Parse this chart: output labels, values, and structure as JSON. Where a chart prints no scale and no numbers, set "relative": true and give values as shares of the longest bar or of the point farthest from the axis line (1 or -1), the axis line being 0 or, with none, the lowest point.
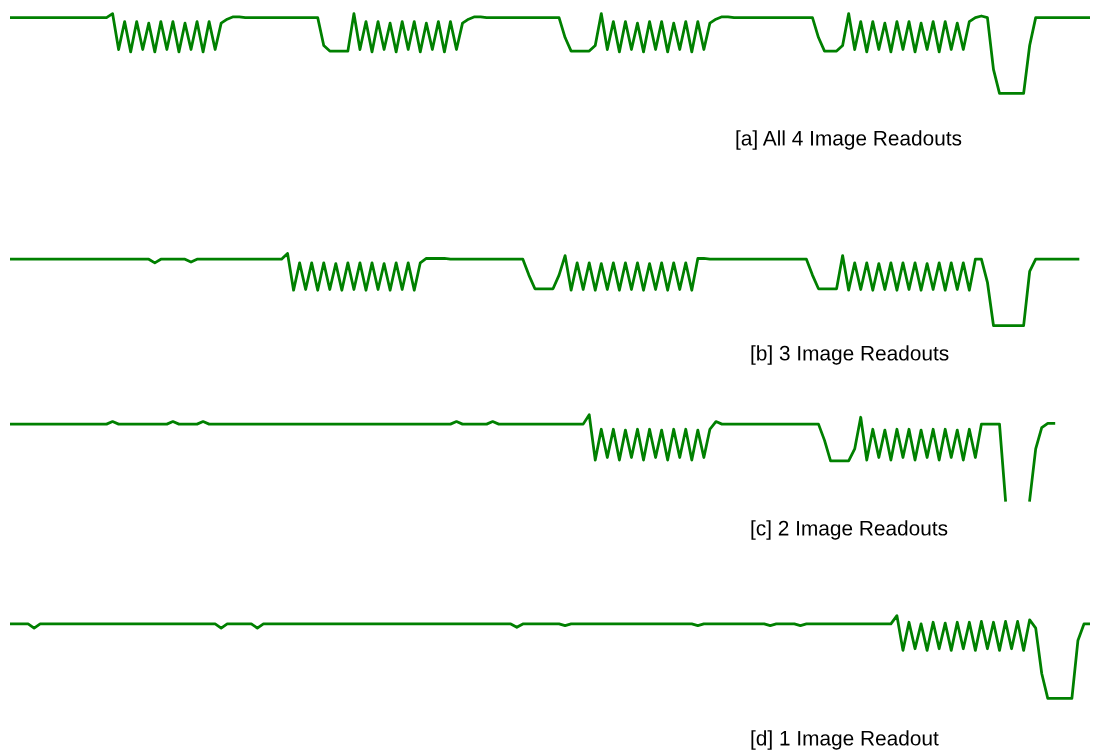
{
  "chart_data": [
    {
      "type": "line",
      "relative": true,
      "color": "#008000",
      "annotations": [
        "[a] All 4 Image Readouts"
      ],
      "categories": [
        null,
        null,
        null,
        null,
        null,
        null,
        null,
        null,
        null,
        null,
        null,
        null,
        null,
        null,
        null,
        null,
        null,
        null,
        null,
        null,
        null,
        null,
        null,
        null,
        null,
        null,
        null,
        null,
        null,
        null,
        null,
        null,
        null,
        null,
        null,
        null,
        null,
        null,
        null,
        null,
        null,
        null,
        null,
        null,
        null,
        null,
        null,
        null,
        null,
        null,
        null,
        null,
        null,
        null,
        null,
        null,
        null,
        null,
        null,
        null,
        null,
        null,
        null,
        null,
        null,
        null,
        null,
        null,
        null,
        null,
        null,
        null,
        null,
        null,
        null,
        null,
        null,
        null,
        null,
        null,
        null,
        null,
        null,
        null,
        null,
        null,
        null,
        null,
        null,
        null,
        null,
        null,
        null,
        null,
        null,
        null,
        null,
        null,
        null,
        null,
        null,
        null,
        null,
        null,
        null,
        null,
        null,
        null,
        null,
        null,
        null,
        null,
        null,
        null,
        null,
        null,
        null,
        null,
        null,
        null,
        null,
        null,
        null,
        null,
        null,
        null,
        null,
        null,
        null,
        null,
        null,
        null,
        null,
        null,
        null,
        null,
        null,
        null,
        null,
        null,
        null,
        null,
        null,
        null,
        null,
        null,
        null,
        null,
        null,
        null,
        null,
        null,
        null,
        null,
        null,
        null,
        null,
        null,
        null,
        null,
        null,
        null,
        null,
        null,
        null,
        null,
        null,
        null,
        null,
        null,
        null,
        null,
        null,
        null,
        null,
        null,
        null,
        null,
        null,
        null
      ],
      "values": [
        0.95,
        0.95,
        0.95,
        0.95,
        0.95,
        0.95,
        0.95,
        0.95,
        0.95,
        0.95,
        0.95,
        0.95,
        0.95,
        0.95,
        0.95,
        0.95,
        0.95,
        1.0,
        0.55,
        0.9,
        0.52,
        0.9,
        0.55,
        0.88,
        0.52,
        0.9,
        0.55,
        0.9,
        0.52,
        0.88,
        0.55,
        0.9,
        0.52,
        0.9,
        0.55,
        0.88,
        0.93,
        0.96,
        0.96,
        0.95,
        0.95,
        0.95,
        0.95,
        0.95,
        0.95,
        0.95,
        0.95,
        0.95,
        0.95,
        0.95,
        0.95,
        0.95,
        0.6,
        0.53,
        0.53,
        0.53,
        0.53,
        1.0,
        0.55,
        0.9,
        0.52,
        0.9,
        0.55,
        0.88,
        0.52,
        0.9,
        0.55,
        0.9,
        0.52,
        0.88,
        0.55,
        0.9,
        0.52,
        0.9,
        0.55,
        0.88,
        0.93,
        0.96,
        0.96,
        0.95,
        0.95,
        0.95,
        0.95,
        0.95,
        0.95,
        0.95,
        0.95,
        0.95,
        0.95,
        0.95,
        0.95,
        0.95,
        0.7,
        0.53,
        0.53,
        0.53,
        0.53,
        0.6,
        1.0,
        0.55,
        0.9,
        0.52,
        0.9,
        0.55,
        0.88,
        0.52,
        0.9,
        0.55,
        0.9,
        0.52,
        0.88,
        0.55,
        0.9,
        0.52,
        0.9,
        0.55,
        0.88,
        0.93,
        0.96,
        0.96,
        0.95,
        0.95,
        0.95,
        0.95,
        0.95,
        0.95,
        0.95,
        0.95,
        0.95,
        0.95,
        0.95,
        0.95,
        0.95,
        0.95,
        0.7,
        0.53,
        0.53,
        0.53,
        0.6,
        1.0,
        0.55,
        0.9,
        0.52,
        0.9,
        0.55,
        0.88,
        0.52,
        0.9,
        0.55,
        0.9,
        0.52,
        0.88,
        0.55,
        0.9,
        0.52,
        0.9,
        0.55,
        0.88,
        0.55,
        0.9,
        0.95,
        0.97,
        0.95,
        0.3,
        0,
        0,
        0,
        0,
        0,
        0.6,
        0.95,
        0.95,
        0.95,
        0.95,
        0.95,
        0.95,
        0.95,
        0.95,
        0.95,
        0.95
      ]
    },
    {
      "type": "line",
      "relative": true,
      "color": "#008000",
      "annotations": [
        "[b] 3 Image Readouts"
      ],
      "categories": [
        null,
        null,
        null,
        null,
        null,
        null,
        null,
        null,
        null,
        null,
        null,
        null,
        null,
        null,
        null,
        null,
        null,
        null,
        null,
        null,
        null,
        null,
        null,
        null,
        null,
        null,
        null,
        null,
        null,
        null,
        null,
        null,
        null,
        null,
        null,
        null,
        null,
        null,
        null,
        null,
        null,
        null,
        null,
        null,
        null,
        null,
        null,
        null,
        null,
        null,
        null,
        null,
        null,
        null,
        null,
        null,
        null,
        null,
        null,
        null,
        null,
        null,
        null,
        null,
        null,
        null,
        null,
        null,
        null,
        null,
        null,
        null,
        null,
        null,
        null,
        null,
        null,
        null,
        null,
        null,
        null,
        null,
        null,
        null,
        null,
        null,
        null,
        null,
        null,
        null,
        null,
        null,
        null,
        null,
        null,
        null,
        null,
        null,
        null,
        null,
        null,
        null,
        null,
        null,
        null,
        null,
        null,
        null,
        null,
        null,
        null,
        null,
        null,
        null,
        null,
        null,
        null,
        null,
        null,
        null,
        null,
        null,
        null,
        null,
        null,
        null,
        null,
        null,
        null,
        null,
        null,
        null,
        null,
        null,
        null,
        null,
        null,
        null,
        null,
        null,
        null,
        null,
        null,
        null,
        null,
        null,
        null,
        null,
        null,
        null,
        null,
        null,
        null,
        null,
        null,
        null,
        null,
        null,
        null,
        null,
        null,
        null,
        null,
        null,
        null,
        null,
        null,
        null,
        null,
        null,
        null,
        null,
        null,
        null,
        null,
        null,
        null,
        null,
        null,
        null
      ],
      "values": [
        0.92,
        0.92,
        0.92,
        0.92,
        0.92,
        0.92,
        0.92,
        0.92,
        0.92,
        0.92,
        0.92,
        0.92,
        0.92,
        0.92,
        0.92,
        0.92,
        0.92,
        0.92,
        0.92,
        0.92,
        0.92,
        0.92,
        0.92,
        0.92,
        0.87,
        0.92,
        0.92,
        0.92,
        0.92,
        0.92,
        0.88,
        0.92,
        0.92,
        0.92,
        0.92,
        0.92,
        0.92,
        0.92,
        0.92,
        0.92,
        0.92,
        0.92,
        0.92,
        0.92,
        0.92,
        0.92,
        1.0,
        0.49,
        0.87,
        0.5,
        0.87,
        0.49,
        0.87,
        0.5,
        0.86,
        0.49,
        0.87,
        0.5,
        0.87,
        0.49,
        0.87,
        0.5,
        0.86,
        0.49,
        0.87,
        0.5,
        0.87,
        0.49,
        0.87,
        0.93,
        0.93,
        0.93,
        0.93,
        0.92,
        0.92,
        0.92,
        0.92,
        0.92,
        0.92,
        0.92,
        0.92,
        0.92,
        0.92,
        0.92,
        0.92,
        0.92,
        0.7,
        0.51,
        0.51,
        0.51,
        0.51,
        0.7,
        0.97,
        0.49,
        0.87,
        0.5,
        0.87,
        0.49,
        0.86,
        0.5,
        0.87,
        0.49,
        0.87,
        0.5,
        0.87,
        0.49,
        0.86,
        0.5,
        0.87,
        0.49,
        0.87,
        0.5,
        0.87,
        0.49,
        0.93,
        0.93,
        0.92,
        0.92,
        0.92,
        0.92,
        0.92,
        0.92,
        0.92,
        0.92,
        0.92,
        0.92,
        0.92,
        0.92,
        0.92,
        0.92,
        0.92,
        0.92,
        0.92,
        0.7,
        0.51,
        0.51,
        0.51,
        0.51,
        0.97,
        0.49,
        0.87,
        0.5,
        0.87,
        0.49,
        0.86,
        0.5,
        0.87,
        0.49,
        0.87,
        0.5,
        0.87,
        0.49,
        0.86,
        0.5,
        0.87,
        0.49,
        0.87,
        0.5,
        0.87,
        0.49,
        0.92,
        0.92,
        0.6,
        0,
        0,
        0,
        0,
        0,
        0,
        0.75,
        0.92,
        0.92,
        0.92,
        0.92,
        0.92,
        0.92,
        0.92,
        0.92,
        null,
        null
      ]
    },
    {
      "type": "line",
      "relative": true,
      "color": "#008000",
      "annotations": [
        "[c] 2 Image Readouts"
      ],
      "categories": [
        null,
        null,
        null,
        null,
        null,
        null,
        null,
        null,
        null,
        null,
        null,
        null,
        null,
        null,
        null,
        null,
        null,
        null,
        null,
        null,
        null,
        null,
        null,
        null,
        null,
        null,
        null,
        null,
        null,
        null,
        null,
        null,
        null,
        null,
        null,
        null,
        null,
        null,
        null,
        null,
        null,
        null,
        null,
        null,
        null,
        null,
        null,
        null,
        null,
        null,
        null,
        null,
        null,
        null,
        null,
        null,
        null,
        null,
        null,
        null,
        null,
        null,
        null,
        null,
        null,
        null,
        null,
        null,
        null,
        null,
        null,
        null,
        null,
        null,
        null,
        null,
        null,
        null,
        null,
        null,
        null,
        null,
        null,
        null,
        null,
        null,
        null,
        null,
        null,
        null,
        null,
        null,
        null,
        null,
        null,
        null,
        null,
        null,
        null,
        null,
        null,
        null,
        null,
        null,
        null,
        null,
        null,
        null,
        null,
        null,
        null,
        null,
        null,
        null,
        null,
        null,
        null,
        null,
        null,
        null,
        null,
        null,
        null,
        null,
        null,
        null,
        null,
        null,
        null,
        null,
        null,
        null,
        null,
        null,
        null,
        null,
        null,
        null,
        null,
        null,
        null,
        null,
        null,
        null,
        null,
        null,
        null,
        null,
        null,
        null,
        null,
        null,
        null,
        null,
        null,
        null,
        null,
        null,
        null,
        null,
        null,
        null,
        null,
        null,
        null,
        null,
        null,
        null,
        null,
        null,
        null,
        null,
        null,
        null,
        null,
        null,
        null,
        null,
        null,
        null
      ],
      "values": [
        0.89,
        0.89,
        0.89,
        0.89,
        0.89,
        0.89,
        0.89,
        0.89,
        0.89,
        0.89,
        0.89,
        0.89,
        0.89,
        0.89,
        0.89,
        0.89,
        0.89,
        0.92,
        0.89,
        0.89,
        0.89,
        0.89,
        0.89,
        0.89,
        0.89,
        0.89,
        0.89,
        0.92,
        0.89,
        0.89,
        0.89,
        0.89,
        0.92,
        0.89,
        0.89,
        0.89,
        0.89,
        0.89,
        0.89,
        0.89,
        0.89,
        0.89,
        0.89,
        0.89,
        0.89,
        0.89,
        0.89,
        0.89,
        0.89,
        0.89,
        0.89,
        0.89,
        0.89,
        0.89,
        0.89,
        0.89,
        0.89,
        0.89,
        0.89,
        0.89,
        0.89,
        0.89,
        0.89,
        0.89,
        0.89,
        0.89,
        0.89,
        0.89,
        0.89,
        0.89,
        0.89,
        0.89,
        0.89,
        0.89,
        0.92,
        0.89,
        0.89,
        0.89,
        0.89,
        0.89,
        0.92,
        0.89,
        0.89,
        0.89,
        0.89,
        0.89,
        0.89,
        0.89,
        0.89,
        0.89,
        0.89,
        0.89,
        0.89,
        0.89,
        0.89,
        0.89,
        1.0,
        0.47,
        0.83,
        0.5,
        0.83,
        0.47,
        0.82,
        0.5,
        0.83,
        0.47,
        0.83,
        0.5,
        0.82,
        0.47,
        0.83,
        0.5,
        0.83,
        0.47,
        0.82,
        0.5,
        0.83,
        0.92,
        0.89,
        0.89,
        0.89,
        0.89,
        0.89,
        0.89,
        0.89,
        0.89,
        0.89,
        0.89,
        0.89,
        0.89,
        0.89,
        0.89,
        0.89,
        0.89,
        0.89,
        0.7,
        0.46,
        0.46,
        0.46,
        0.46,
        0.6,
        0.97,
        0.47,
        0.83,
        0.5,
        0.82,
        0.47,
        0.83,
        0.5,
        0.83,
        0.47,
        0.82,
        0.5,
        0.83,
        0.47,
        0.83,
        0.5,
        0.82,
        0.47,
        0.83,
        0.5,
        0.89,
        0.89,
        0.89,
        0.89,
        0.0,
        null,
        null,
        null,
        0.0,
        0.6,
        0.85,
        0.9,
        0.9,
        null,
        null,
        null,
        null,
        null,
        null
      ]
    },
    {
      "type": "line",
      "relative": true,
      "color": "#008000",
      "annotations": [
        "[d] 1 Image Readout"
      ],
      "categories": [
        null,
        null,
        null,
        null,
        null,
        null,
        null,
        null,
        null,
        null,
        null,
        null,
        null,
        null,
        null,
        null,
        null,
        null,
        null,
        null,
        null,
        null,
        null,
        null,
        null,
        null,
        null,
        null,
        null,
        null,
        null,
        null,
        null,
        null,
        null,
        null,
        null,
        null,
        null,
        null,
        null,
        null,
        null,
        null,
        null,
        null,
        null,
        null,
        null,
        null,
        null,
        null,
        null,
        null,
        null,
        null,
        null,
        null,
        null,
        null,
        null,
        null,
        null,
        null,
        null,
        null,
        null,
        null,
        null,
        null,
        null,
        null,
        null,
        null,
        null,
        null,
        null,
        null,
        null,
        null,
        null,
        null,
        null,
        null,
        null,
        null,
        null,
        null,
        null,
        null,
        null,
        null,
        null,
        null,
        null,
        null,
        null,
        null,
        null,
        null,
        null,
        null,
        null,
        null,
        null,
        null,
        null,
        null,
        null,
        null,
        null,
        null,
        null,
        null,
        null,
        null,
        null,
        null,
        null,
        null,
        null,
        null,
        null,
        null,
        null,
        null,
        null,
        null,
        null,
        null,
        null,
        null,
        null,
        null,
        null,
        null,
        null,
        null,
        null,
        null,
        null,
        null,
        null,
        null,
        null,
        null,
        null,
        null,
        null,
        null,
        null,
        null,
        null,
        null,
        null,
        null,
        null,
        null,
        null,
        null,
        null,
        null,
        null,
        null,
        null,
        null,
        null,
        null,
        null,
        null,
        null,
        null,
        null,
        null,
        null,
        null,
        null,
        null,
        null,
        null
      ],
      "values": [
        0.9,
        0.9,
        0.9,
        0.9,
        0.85,
        0.9,
        0.9,
        0.9,
        0.9,
        0.9,
        0.9,
        0.9,
        0.9,
        0.9,
        0.9,
        0.9,
        0.9,
        0.9,
        0.9,
        0.9,
        0.9,
        0.9,
        0.9,
        0.9,
        0.9,
        0.9,
        0.9,
        0.9,
        0.9,
        0.9,
        0.9,
        0.9,
        0.9,
        0.9,
        0.9,
        0.85,
        0.9,
        0.9,
        0.9,
        0.9,
        0.9,
        0.85,
        0.9,
        0.9,
        0.9,
        0.9,
        0.9,
        0.9,
        0.9,
        0.9,
        0.9,
        0.9,
        0.9,
        0.9,
        0.9,
        0.9,
        0.9,
        0.9,
        0.9,
        0.9,
        0.9,
        0.9,
        0.9,
        0.9,
        0.9,
        0.9,
        0.9,
        0.9,
        0.9,
        0.9,
        0.9,
        0.9,
        0.9,
        0.9,
        0.9,
        0.9,
        0.9,
        0.9,
        0.9,
        0.9,
        0.9,
        0.9,
        0.9,
        0.9,
        0.86,
        0.9,
        0.9,
        0.9,
        0.9,
        0.9,
        0.9,
        0.9,
        0.88,
        0.9,
        0.9,
        0.9,
        0.9,
        0.9,
        0.9,
        0.9,
        0.9,
        0.9,
        0.9,
        0.9,
        0.9,
        0.9,
        0.9,
        0.9,
        0.9,
        0.9,
        0.9,
        0.9,
        0.9,
        0.9,
        0.88,
        0.9,
        0.9,
        0.9,
        0.9,
        0.9,
        0.9,
        0.9,
        0.9,
        0.9,
        0.9,
        0.9,
        0.88,
        0.9,
        0.9,
        0.9,
        0.9,
        0.88,
        0.9,
        0.9,
        0.9,
        0.9,
        0.9,
        0.9,
        0.9,
        0.9,
        0.9,
        0.9,
        0.9,
        0.9,
        0.9,
        0.9,
        0.9,
        1.0,
        0.58,
        0.92,
        0.6,
        0.9,
        0.58,
        0.92,
        0.6,
        0.91,
        0.58,
        0.92,
        0.6,
        0.92,
        0.58,
        0.93,
        0.6,
        0.92,
        0.58,
        0.93,
        0.6,
        0.93,
        0.58,
        0.95,
        0.85,
        0.3,
        0,
        0,
        0,
        0,
        0,
        0.7,
        0.9,
        0.9
      ]
    }
  ]
}
